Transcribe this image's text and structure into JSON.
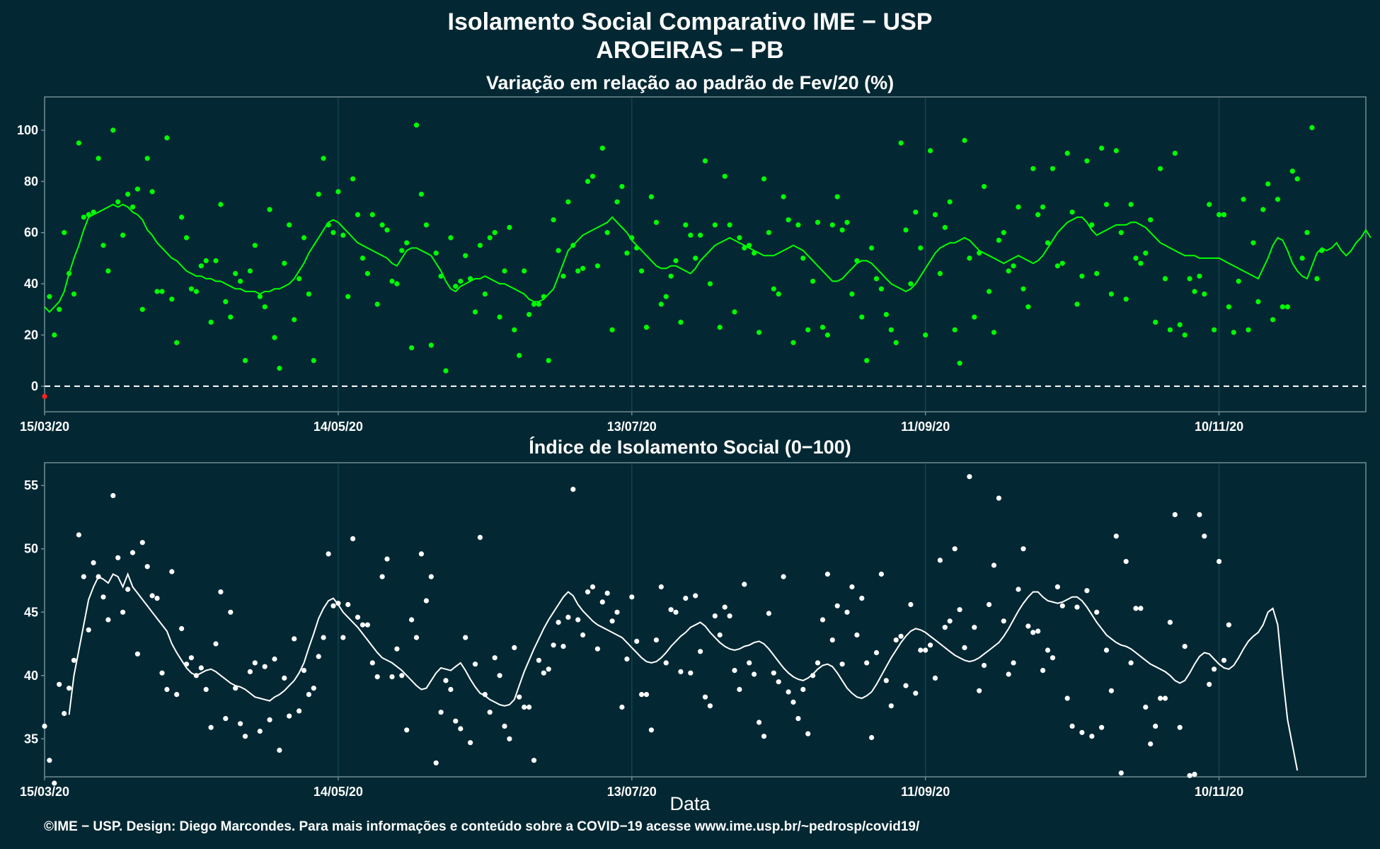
{
  "title_line1": "Isolamento Social Comparativo IME − USP",
  "title_line2": "AROEIRAS − PB",
  "footer": "©IME − USP. Design: Diego Marcondes. Para mais informações e conteúdo sobre a COVID−19 acesse www.ime.usp.br/~pedrosp/covid19/",
  "colors": {
    "background": "#032833",
    "green": "#00ff00",
    "white": "#ffffff",
    "red": "#ff2020",
    "frame": "#6f8a92",
    "grid": "#12434f"
  },
  "chart_data": [
    {
      "type": "scatter",
      "title": "Variação em relação ao padrão de Fev/20 (%)",
      "xlabel": "",
      "ylabel": "",
      "x_start": "15/03/20",
      "x_ticks": [
        "15/03/20",
        "14/05/20",
        "13/07/20",
        "11/09/20",
        "10/11/20"
      ],
      "x_tick_days": [
        0,
        60,
        120,
        180,
        240
      ],
      "x_range_days": [
        0,
        270
      ],
      "ylim": [
        -10,
        113
      ],
      "y_ticks": [
        0,
        20,
        40,
        60,
        80,
        100
      ],
      "reference_line": 0,
      "grid": true,
      "series": [
        {
          "style": "points",
          "values": [
            -4,
            35,
            20,
            30,
            60,
            44,
            36,
            95,
            66,
            67,
            68,
            89,
            55,
            45,
            100,
            72,
            59,
            75,
            70,
            77,
            30,
            89,
            76,
            37,
            37,
            97,
            34,
            17,
            66,
            58,
            38,
            37,
            47,
            49,
            25,
            49,
            71,
            33,
            27,
            44,
            41,
            10,
            45,
            55,
            35,
            31,
            69,
            19,
            7,
            48,
            63,
            26,
            42,
            58,
            36,
            10,
            75,
            89,
            63,
            60,
            76,
            59,
            35,
            81,
            67,
            50,
            44,
            67,
            32,
            63,
            61,
            41,
            40,
            53,
            56,
            15,
            102,
            75,
            63,
            16,
            52,
            43,
            6,
            58,
            39,
            41,
            51,
            42,
            29,
            55,
            36,
            58,
            60,
            27,
            45,
            62,
            22,
            12,
            45,
            28,
            32,
            32,
            35,
            10,
            65,
            53,
            43,
            72,
            55,
            45,
            46,
            80,
            82,
            47,
            93,
            60,
            22,
            72,
            78,
            52,
            58,
            54,
            45,
            23,
            74,
            64,
            32,
            35,
            43,
            49,
            25,
            63,
            59,
            50,
            59,
            88,
            40,
            63,
            23,
            82,
            63,
            29,
            58,
            54,
            55,
            52,
            21,
            81,
            60,
            38,
            36,
            74,
            65,
            17,
            63,
            50,
            22,
            41,
            64,
            23,
            20,
            63,
            74,
            61,
            64,
            36,
            49,
            27,
            10,
            54,
            42,
            38,
            28,
            22,
            17,
            95,
            61,
            40,
            68,
            54,
            20,
            92,
            67,
            44,
            62,
            72,
            22,
            9,
            96,
            50,
            27,
            52,
            78,
            37,
            21,
            57,
            60,
            45,
            47,
            70,
            38,
            31,
            85,
            67,
            70,
            56,
            85,
            47,
            48,
            91,
            68,
            32,
            43,
            88,
            63,
            44,
            93,
            71,
            36,
            92,
            60,
            34,
            71,
            50,
            48,
            52,
            65,
            25,
            85,
            42,
            22,
            91,
            24,
            20,
            42,
            37,
            43,
            36,
            71,
            22,
            67,
            67,
            31,
            21,
            41,
            73,
            22,
            56,
            33,
            69,
            79,
            26,
            73,
            31,
            31,
            84,
            81,
            50,
            60,
            101,
            42,
            53
          ]
        },
        {
          "style": "line",
          "values": [
            31,
            29,
            31,
            33,
            37,
            44,
            50,
            55,
            61,
            66,
            67,
            68,
            69,
            70,
            71,
            70,
            71,
            70,
            68,
            67,
            65,
            61,
            59,
            56,
            54,
            52,
            50,
            49,
            47,
            45,
            44,
            43,
            43,
            42,
            42,
            41,
            41,
            40,
            39,
            38,
            38,
            37,
            37,
            37,
            36,
            37,
            37,
            38,
            38,
            39,
            40,
            42,
            45,
            48,
            52,
            55,
            58,
            61,
            64,
            65,
            64,
            62,
            60,
            58,
            56,
            55,
            54,
            53,
            52,
            51,
            50,
            48,
            47,
            50,
            53,
            54,
            54,
            53,
            52,
            51,
            48,
            45,
            41,
            38,
            37,
            39,
            40,
            41,
            42,
            42,
            43,
            42,
            41,
            40,
            40,
            39,
            38,
            37,
            36,
            34,
            33,
            33,
            34,
            36,
            38,
            43,
            48,
            53,
            55,
            57,
            59,
            60,
            61,
            62,
            63,
            64,
            66,
            64,
            62,
            60,
            57,
            55,
            53,
            51,
            49,
            47,
            46,
            46,
            47,
            47,
            46,
            45,
            44,
            46,
            49,
            51,
            53,
            55,
            56,
            57,
            58,
            57,
            56,
            55,
            54,
            53,
            52,
            51,
            51,
            51,
            52,
            53,
            54,
            55,
            54,
            53,
            51,
            49,
            47,
            45,
            43,
            41,
            41,
            42,
            44,
            46,
            48,
            49,
            49,
            48,
            46,
            44,
            42,
            40,
            39,
            38,
            37,
            38,
            40,
            43,
            46,
            49,
            52,
            54,
            55,
            56,
            56,
            57,
            58,
            57,
            55,
            53,
            52,
            51,
            50,
            49,
            48,
            49,
            50,
            51,
            50,
            49,
            48,
            49,
            51,
            54,
            57,
            60,
            62,
            64,
            65,
            66,
            66,
            64,
            61,
            59,
            60,
            61,
            62,
            63,
            63,
            63,
            64,
            64,
            63,
            62,
            60,
            58,
            56,
            55,
            54,
            53,
            52,
            51,
            51,
            51,
            50,
            50,
            50,
            50,
            50,
            49,
            48,
            47,
            46,
            45,
            44,
            43,
            42,
            46,
            50,
            55,
            58,
            57,
            53,
            48,
            45,
            43,
            42,
            47,
            52,
            54,
            53,
            54,
            56,
            53,
            51,
            53,
            56,
            58,
            61,
            58
          ]
        }
      ]
    },
    {
      "type": "scatter",
      "title": "Índice de Isolamento Social (0−100)",
      "xlabel": "Data",
      "ylabel": "",
      "x_start": "15/03/20",
      "x_ticks": [
        "15/03/20",
        "14/05/20",
        "13/07/20",
        "11/09/20",
        "10/11/20"
      ],
      "x_tick_days": [
        0,
        60,
        120,
        180,
        240
      ],
      "x_range_days": [
        0,
        270
      ],
      "ylim": [
        32,
        56.8
      ],
      "y_ticks": [
        35,
        40,
        45,
        50,
        55
      ],
      "grid": true,
      "series": [
        {
          "style": "points",
          "values": [
            36.0,
            33.3,
            31.5,
            39.3,
            37.0,
            39.0,
            41.2,
            51.1,
            47.8,
            43.6,
            48.9,
            47.8,
            46.2,
            44.4,
            54.2,
            49.3,
            45.0,
            46.8,
            49.7,
            41.7,
            50.5,
            48.6,
            46.3,
            46.1,
            40.2,
            38.9,
            48.2,
            38.5,
            43.7,
            40.9,
            41.4,
            40.0,
            40.6,
            38.9,
            35.9,
            42.5,
            46.6,
            36.6,
            45.0,
            39.0,
            36.2,
            35.2,
            40.3,
            41.0,
            35.6,
            40.7,
            36.5,
            41.3,
            34.1,
            39.8,
            36.8,
            42.9,
            37.2,
            40.4,
            38.5,
            39.0,
            41.5,
            43.0,
            49.6,
            45.5,
            45.7,
            43.0,
            45.6,
            50.8,
            44.6,
            44.0,
            44.0,
            41.0,
            39.9,
            47.8,
            49.2,
            39.9,
            42.1,
            40.0,
            35.7,
            44.4,
            43.0,
            49.6,
            45.9,
            47.8,
            33.1,
            37.1,
            39.6,
            38.9,
            36.4,
            35.8,
            43.0,
            34.7,
            40.9,
            50.9,
            38.5,
            37.1,
            41.4,
            40.0,
            36.0,
            35.0,
            42.2,
            38.3,
            37.5,
            37.5,
            33.3,
            41.2,
            40.2,
            40.5,
            42.4,
            44.2,
            42.3,
            44.6,
            54.7,
            44.4,
            43.2,
            46.6,
            47.0,
            42.1,
            45.8,
            46.5,
            44.3,
            45.0,
            37.5,
            41.3,
            46.2,
            42.7,
            38.5,
            38.5,
            35.7,
            42.8,
            47.0,
            41.0,
            45.2,
            45.0,
            40.3,
            46.1,
            40.2,
            46.3,
            41.9,
            38.3,
            37.6,
            44.7,
            43.2,
            45.4,
            44.7,
            40.4,
            38.9,
            47.2,
            41.0,
            40.1,
            36.3,
            35.2,
            44.9,
            40.2,
            39.5,
            47.8,
            38.7,
            37.9,
            36.6,
            38.9,
            35.4,
            40.0,
            41.0,
            44.4,
            48.0,
            42.8,
            45.5,
            40.9,
            45.0,
            47.0,
            43.2,
            46.1,
            41.0,
            35.1,
            41.8,
            48.0,
            39.6,
            37.6,
            42.8,
            43.1,
            39.2,
            45.6,
            38.6,
            42.0,
            42.0,
            42.4,
            39.8,
            49.1,
            43.8,
            44.3,
            50.0,
            45.2,
            42.2,
            55.7,
            43.8,
            38.8,
            40.8,
            45.6,
            48.7,
            54.0,
            44.3,
            40.1,
            41.0,
            46.8,
            50.0,
            43.9,
            43.4,
            43.5,
            40.4,
            42.0,
            41.4,
            47.0,
            45.5,
            38.2,
            36.0,
            45.4,
            35.5,
            46.7,
            35.2,
            45.0,
            35.9,
            42.0,
            38.8,
            51.0,
            32.3,
            49.0,
            41.0,
            45.3,
            45.3,
            37.5,
            34.6,
            36.0,
            38.2,
            38.2,
            44.2,
            52.7,
            35.9,
            42.3,
            32.1,
            32.2,
            52.7,
            51.0,
            39.3,
            40.5,
            49.0,
            41.2,
            44.0
          ]
        },
        {
          "style": "line",
          "start_day": 5,
          "values": [
            36.9,
            40.0,
            42.0,
            44.0,
            46.0,
            47.0,
            47.8,
            47.6,
            47.3,
            48.0,
            47.8,
            47.0,
            48.0,
            47.0,
            46.5,
            46.0,
            45.5,
            45.0,
            44.5,
            44.0,
            43.5,
            42.5,
            41.8,
            41.2,
            40.6,
            40.2,
            40.0,
            40.2,
            40.4,
            40.5,
            40.3,
            40.0,
            39.7,
            39.4,
            39.2,
            39.1,
            38.9,
            38.6,
            38.3,
            38.2,
            38.1,
            38.0,
            38.3,
            38.5,
            38.8,
            39.2,
            39.6,
            40.2,
            41.0,
            42.2,
            43.3,
            44.5,
            45.3,
            45.9,
            46.1,
            45.6,
            45.0,
            44.6,
            44.2,
            43.8,
            43.3,
            42.8,
            42.3,
            41.8,
            41.4,
            41.2,
            41.0,
            40.7,
            40.4,
            40.0,
            39.6,
            39.2,
            38.9,
            39.0,
            39.6,
            40.2,
            40.6,
            40.5,
            40.4,
            40.7,
            41.0,
            40.4,
            39.7,
            39.1,
            38.6,
            38.4,
            38.1,
            37.9,
            37.7,
            37.6,
            37.7,
            38.1,
            39.2,
            40.3,
            41.2,
            42.1,
            42.9,
            43.7,
            44.4,
            45.0,
            45.6,
            46.2,
            46.6,
            46.3,
            45.6,
            45.1,
            44.7,
            44.3,
            44.0,
            43.8,
            43.6,
            43.4,
            43.2,
            43.0,
            42.6,
            42.2,
            41.8,
            41.4,
            41.1,
            41.0,
            41.1,
            41.4,
            41.8,
            42.3,
            42.7,
            43.1,
            43.4,
            43.8,
            44.0,
            44.2,
            43.9,
            43.4,
            43.0,
            42.6,
            42.3,
            42.1,
            42.0,
            42.1,
            42.3,
            42.4,
            42.6,
            42.7,
            42.5,
            42.1,
            41.6,
            41.1,
            40.6,
            40.2,
            39.9,
            39.7,
            39.6,
            39.8,
            40.1,
            40.5,
            40.8,
            40.9,
            40.7,
            40.2,
            39.6,
            39.0,
            38.6,
            38.3,
            38.2,
            38.4,
            38.7,
            39.3,
            40.0,
            40.7,
            41.4,
            42.0,
            42.6,
            43.1,
            43.5,
            43.7,
            43.6,
            43.4,
            43.1,
            42.8,
            42.5,
            42.2,
            41.9,
            41.6,
            41.4,
            41.2,
            41.1,
            41.2,
            41.4,
            41.7,
            42.0,
            42.3,
            42.6,
            43.1,
            43.7,
            44.4,
            45.1,
            45.7,
            46.2,
            46.6,
            46.6,
            46.2,
            45.9,
            45.8,
            45.7,
            45.8,
            46.0,
            46.2,
            46.2,
            45.9,
            45.4,
            44.8,
            44.2,
            43.7,
            43.2,
            42.9,
            42.6,
            42.4,
            42.3,
            42.1,
            41.8,
            41.5,
            41.2,
            40.9,
            40.7,
            40.5,
            40.3,
            40.0,
            39.6,
            39.4,
            39.6,
            40.2,
            40.9,
            41.5,
            41.8,
            41.7,
            41.3,
            40.9,
            40.6,
            40.5,
            40.8,
            41.4,
            42.1,
            42.7,
            43.1,
            43.4,
            44.0,
            45.0,
            45.3,
            44.0,
            40.0,
            36.5,
            34.5,
            32.5
          ]
        }
      ]
    }
  ]
}
